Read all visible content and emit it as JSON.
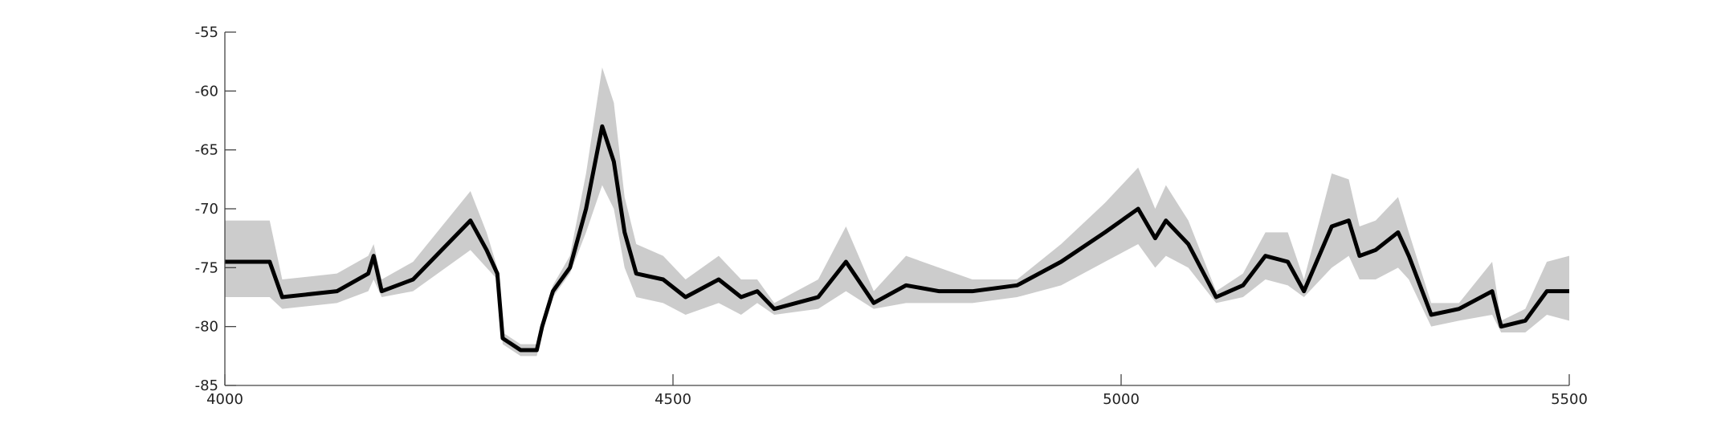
{
  "chart_data": {
    "type": "line",
    "x": [
      4000,
      4050,
      4064,
      4125,
      4160,
      4166,
      4175,
      4210,
      4274,
      4292,
      4304,
      4310,
      4330,
      4348,
      4354,
      4366,
      4385,
      4403,
      4421,
      4434,
      4446,
      4459,
      4489,
      4514,
      4551,
      4576,
      4594,
      4613,
      4662,
      4693,
      4724,
      4760,
      4797,
      4834,
      4884,
      4933,
      4982,
      5019,
      5038,
      5050,
      5075,
      5106,
      5136,
      5161,
      5186,
      5204,
      5235,
      5254,
      5266,
      5284,
      5309,
      5321,
      5346,
      5377,
      5414,
      5424,
      5451,
      5475,
      5500
    ],
    "series": [
      {
        "color": "#000000",
        "values": [
          -74.5,
          -74.5,
          -77.5,
          -77,
          -75.5,
          -74,
          -77,
          -76,
          -71,
          -73.5,
          -75.5,
          -81,
          -82,
          -82,
          -80,
          -77,
          -75,
          -70,
          -63,
          -66,
          -72,
          -75.5,
          -76,
          -77.5,
          -76,
          -77.5,
          -77,
          -78.5,
          -77.5,
          -74.5,
          -78,
          -76.5,
          -77,
          -77,
          -76.5,
          -74.5,
          -72,
          -70,
          -72.5,
          -71,
          -73,
          -77.5,
          -76.5,
          -74,
          -74.5,
          -77,
          -71.5,
          -71,
          -74,
          -73.5,
          -72,
          -74,
          -79,
          -78.5,
          -77,
          -80,
          -79.5,
          -77,
          -77
        ]
      }
    ],
    "band": {
      "color": "#cccccc",
      "lower": [
        -77.5,
        -77.5,
        -78.5,
        -78,
        -77,
        -76,
        -77.5,
        -77,
        -73.5,
        -75,
        -76,
        -81.5,
        -82.5,
        -82.5,
        -80.5,
        -77.5,
        -75.5,
        -72,
        -68,
        -70,
        -75,
        -77.5,
        -78,
        -79,
        -78,
        -79,
        -78,
        -79,
        -78.5,
        -77,
        -78.5,
        -78,
        -78,
        -78,
        -77.5,
        -76.5,
        -74.5,
        -73,
        -75,
        -74,
        -75,
        -78,
        -77.5,
        -76,
        -76.5,
        -77.5,
        -75,
        -74,
        -76,
        -76,
        -75,
        -76,
        -80,
        -79.5,
        -79,
        -80.5,
        -80.5,
        -79,
        -79.5
      ],
      "upper": [
        -71,
        -71,
        -76,
        -75.5,
        -74,
        -73,
        -76,
        -74.5,
        -68.5,
        -72,
        -75,
        -80.5,
        -81.5,
        -81.5,
        -79.5,
        -76.5,
        -74,
        -67,
        -58,
        -61,
        -69,
        -73,
        -74,
        -76,
        -74,
        -76,
        -76,
        -78,
        -76,
        -71.5,
        -77,
        -74,
        -75,
        -76,
        -76,
        -73,
        -69.5,
        -66.5,
        -70,
        -68,
        -71,
        -77,
        -75.5,
        -72,
        -72,
        -76,
        -67,
        -67.5,
        -71.5,
        -71,
        -69,
        -72,
        -78,
        -78,
        -74.5,
        -79.5,
        -78.5,
        -74.5,
        -74
      ]
    },
    "xlim": [
      4000,
      5500
    ],
    "xticks": [
      4000,
      4500,
      5000,
      5500
    ],
    "ylim": [
      -85,
      -55
    ],
    "yticks": [
      -85,
      -80,
      -75,
      -70,
      -65,
      -60,
      -55
    ]
  }
}
